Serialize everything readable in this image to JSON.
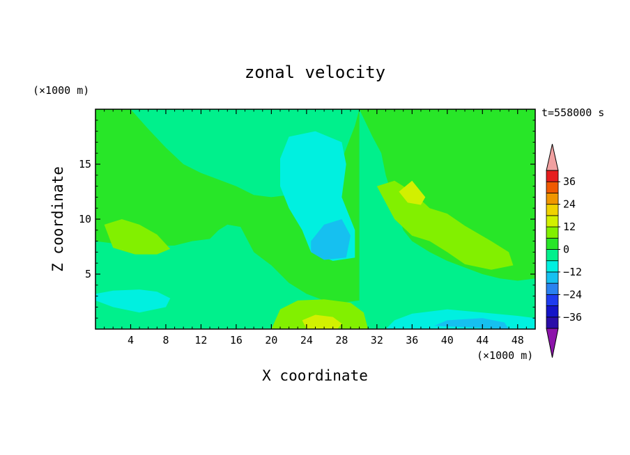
{
  "chart_data": {
    "type": "heatmap",
    "title": "zonal velocity",
    "xlabel": "X coordinate",
    "ylabel": "Z coordinate",
    "x_unit": "(×1000 m)",
    "y_unit": "(×1000 m)",
    "time_label": "t=558000 s",
    "xlim": [
      0,
      50
    ],
    "ylim": [
      0,
      20
    ],
    "x_ticks": [
      4,
      8,
      12,
      16,
      20,
      24,
      28,
      32,
      36,
      40,
      44,
      48
    ],
    "y_ticks": [
      5,
      10,
      15
    ],
    "colorbar": {
      "levels": [
        -42,
        -36,
        -30,
        -24,
        -18,
        -12,
        -6,
        0,
        6,
        12,
        18,
        24,
        30,
        36,
        42
      ],
      "tick_labels": [
        36,
        24,
        12,
        0,
        -12,
        -24,
        -36
      ],
      "colors": [
        "#6a0fa0",
        "#2a0da8",
        "#1414c8",
        "#1e3cf0",
        "#2a82f0",
        "#16c0f0",
        "#00f0e0",
        "#00f08c",
        "#28e628",
        "#82f000",
        "#d2f000",
        "#f0d200",
        "#f09600",
        "#f05a00",
        "#e61e1e",
        "#f0a0a0"
      ],
      "over_color": "#f0a0a0",
      "under_color": "#8c14aa"
    },
    "regions": [
      {
        "value": 3,
        "path": [
          [
            0,
            20
          ],
          [
            50,
            20
          ],
          [
            50,
            0
          ],
          [
            0,
            0
          ]
        ]
      },
      {
        "value": -3,
        "path": [
          [
            0,
            20
          ],
          [
            4,
            20
          ],
          [
            6,
            18.2
          ],
          [
            8,
            16.5
          ],
          [
            10,
            15
          ],
          [
            12,
            14.2
          ],
          [
            14,
            13.6
          ],
          [
            16,
            13
          ],
          [
            18,
            12.2
          ],
          [
            20,
            12
          ],
          [
            22,
            12.2
          ],
          [
            24,
            13
          ],
          [
            26,
            13.5
          ],
          [
            28,
            15.4
          ],
          [
            29.5,
            18.5
          ],
          [
            30,
            20
          ]
        ]
      },
      {
        "value": -3,
        "path": [
          [
            0,
            8
          ],
          [
            5,
            7.5
          ],
          [
            9,
            7.6
          ],
          [
            11,
            8
          ],
          [
            13,
            8.2
          ],
          [
            14,
            9
          ],
          [
            15,
            9.5
          ],
          [
            16.5,
            9.3
          ],
          [
            18,
            7
          ],
          [
            20,
            5.8
          ],
          [
            22,
            4.2
          ],
          [
            24,
            3.2
          ],
          [
            26,
            2.6
          ],
          [
            28,
            2.4
          ],
          [
            30,
            2.6
          ],
          [
            32,
            3
          ],
          [
            34,
            3.2
          ],
          [
            36,
            3.2
          ],
          [
            38,
            3.6
          ],
          [
            40,
            4
          ],
          [
            42,
            4.2
          ],
          [
            44,
            4
          ],
          [
            45,
            2.6
          ],
          [
            46,
            1.6
          ],
          [
            48,
            1
          ],
          [
            50,
            1.5
          ],
          [
            50,
            0
          ],
          [
            0,
            0
          ]
        ]
      },
      {
        "value": -3,
        "path": [
          [
            30,
            20
          ],
          [
            31.5,
            17.5
          ],
          [
            32.5,
            16
          ],
          [
            33,
            14
          ],
          [
            34,
            11.5
          ],
          [
            35,
            9
          ],
          [
            36,
            8
          ],
          [
            38,
            7
          ],
          [
            40,
            6.2
          ],
          [
            42,
            5.6
          ],
          [
            44,
            5
          ],
          [
            46,
            4.6
          ],
          [
            48,
            4.4
          ],
          [
            50,
            4.6
          ],
          [
            50,
            0
          ],
          [
            30,
            0
          ]
        ]
      },
      {
        "value": -9,
        "path": [
          [
            21,
            15.5
          ],
          [
            22,
            17.5
          ],
          [
            25,
            18
          ],
          [
            28,
            17
          ],
          [
            28.5,
            15
          ],
          [
            28,
            12
          ],
          [
            29.5,
            9
          ],
          [
            29.5,
            6.5
          ],
          [
            27,
            6.2
          ],
          [
            24.5,
            7
          ],
          [
            23.5,
            9
          ],
          [
            22,
            11
          ],
          [
            21,
            13
          ]
        ]
      },
      {
        "value": -9,
        "path": [
          [
            0,
            2.6
          ],
          [
            2,
            2
          ],
          [
            5,
            1.5
          ],
          [
            8,
            2
          ],
          [
            8.5,
            2.8
          ],
          [
            7,
            3.4
          ],
          [
            5,
            3.6
          ],
          [
            2,
            3.5
          ],
          [
            0,
            3.2
          ]
        ]
      },
      {
        "value": -9,
        "path": [
          [
            33,
            0
          ],
          [
            34,
            0.8
          ],
          [
            36,
            1.4
          ],
          [
            40,
            1.8
          ],
          [
            44,
            1.5
          ],
          [
            48,
            1.2
          ],
          [
            50,
            1
          ],
          [
            50,
            0
          ]
        ]
      },
      {
        "value": -15,
        "path": [
          [
            24.5,
            8
          ],
          [
            26,
            9.5
          ],
          [
            28,
            10
          ],
          [
            29,
            8.5
          ],
          [
            28.5,
            6.5
          ],
          [
            26,
            6.3
          ],
          [
            24.5,
            7
          ]
        ]
      },
      {
        "value": -15,
        "path": [
          [
            38.5,
            0.3
          ],
          [
            40,
            0.8
          ],
          [
            44,
            1
          ],
          [
            46.5,
            0.6
          ],
          [
            47,
            0
          ]
        ]
      },
      {
        "value": 9,
        "path": [
          [
            1,
            9.5
          ],
          [
            3,
            10
          ],
          [
            5,
            9.5
          ],
          [
            7,
            8.6
          ],
          [
            8.5,
            7.3
          ],
          [
            7,
            6.8
          ],
          [
            4.5,
            6.8
          ],
          [
            2,
            7.4
          ]
        ]
      },
      {
        "value": 9,
        "path": [
          [
            32,
            13
          ],
          [
            34,
            13.5
          ],
          [
            36,
            12.5
          ],
          [
            38,
            11
          ],
          [
            40,
            10.5
          ],
          [
            42,
            9.4
          ],
          [
            45,
            8
          ],
          [
            47,
            7
          ],
          [
            47.5,
            5.8
          ],
          [
            45,
            5.4
          ],
          [
            42,
            5.9
          ],
          [
            40,
            7
          ],
          [
            38,
            8
          ],
          [
            36,
            8.5
          ],
          [
            34,
            10
          ]
        ]
      },
      {
        "value": 9,
        "path": [
          [
            20,
            0
          ],
          [
            21,
            1.8
          ],
          [
            23,
            2.6
          ],
          [
            26,
            2.7
          ],
          [
            29,
            2.4
          ],
          [
            30.5,
            1.5
          ],
          [
            31,
            0
          ]
        ]
      },
      {
        "value": 15,
        "path": [
          [
            34.5,
            12.5
          ],
          [
            36,
            13.5
          ],
          [
            37.5,
            12
          ],
          [
            37,
            11.3
          ],
          [
            35.5,
            11.5
          ]
        ]
      },
      {
        "value": 15,
        "path": [
          [
            23.5,
            0.8
          ],
          [
            25,
            1.3
          ],
          [
            27,
            1.1
          ],
          [
            28,
            0.5
          ],
          [
            27.5,
            0
          ],
          [
            24,
            0
          ]
        ]
      }
    ]
  }
}
